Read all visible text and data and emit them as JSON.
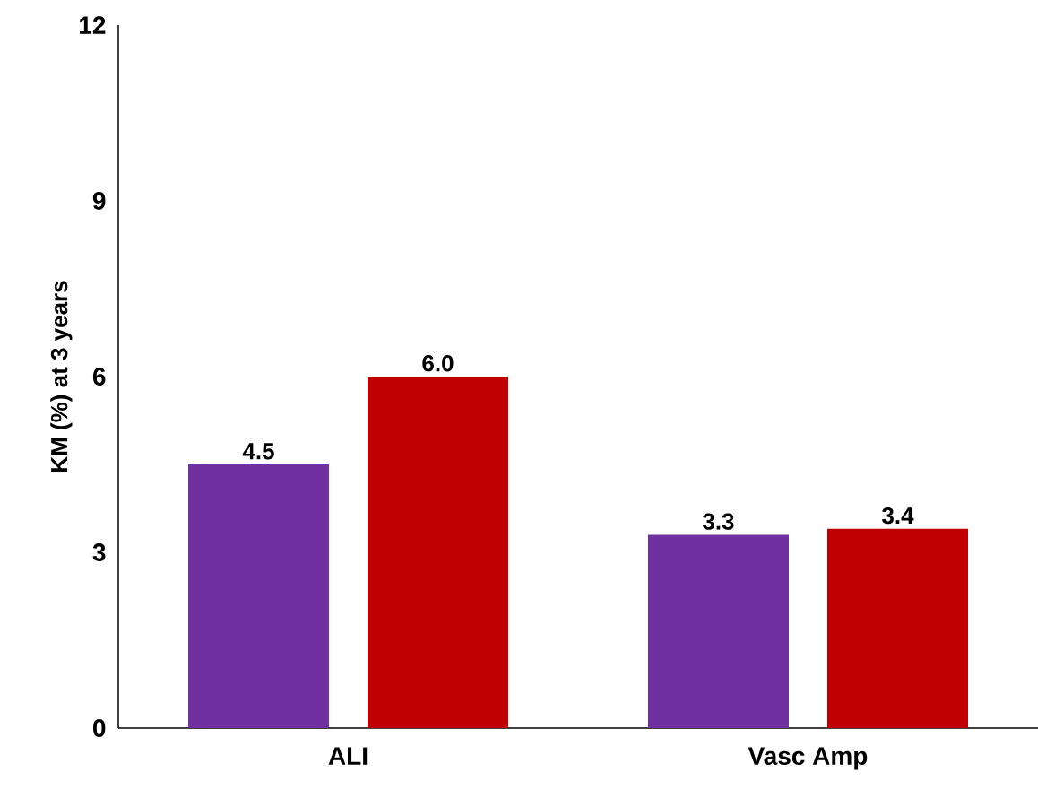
{
  "chart_data": {
    "type": "bar",
    "ylabel": "KM (%) at 3 years",
    "categories": [
      "ALI",
      "Vasc Amp"
    ],
    "series": [
      {
        "color": "#7030a0",
        "values": [
          4.5,
          3.3
        ],
        "value_labels": [
          "4.5",
          "3.3"
        ]
      },
      {
        "color": "#c00000",
        "values": [
          6.0,
          3.4
        ],
        "value_labels": [
          "6.0",
          "3.4"
        ]
      }
    ],
    "ylim": [
      0,
      12
    ],
    "yticks": [
      0,
      3,
      6,
      9,
      12
    ],
    "grid": false
  }
}
